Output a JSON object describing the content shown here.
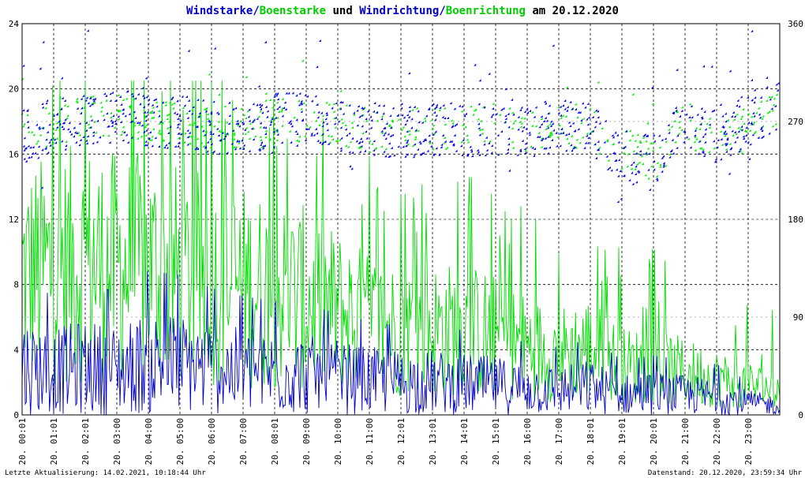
{
  "chart_data": {
    "type": "line",
    "title": {
      "parts": [
        {
          "text": "Windstarke",
          "color": "#0000cc"
        },
        {
          "text": "/",
          "color": "#0000cc"
        },
        {
          "text": "Boenstarke",
          "color": "#00cc00"
        },
        {
          "text": " und ",
          "color": "#000000"
        },
        {
          "text": "Windrichtung",
          "color": "#0000cc"
        },
        {
          "text": "/",
          "color": "#0000cc"
        },
        {
          "text": "Boenrichtung",
          "color": "#00cc00"
        },
        {
          "text": " am 20.12.2020",
          "color": "#000000"
        }
      ]
    },
    "y_left": {
      "ticks": [
        "0",
        "4",
        "8",
        "12",
        "16",
        "20",
        "24"
      ],
      "range": [
        0,
        24
      ]
    },
    "y_right": {
      "ticks": [
        "0",
        "90",
        "180",
        "270",
        "360"
      ],
      "range": [
        0,
        360
      ]
    },
    "x": {
      "range_hours": [
        0,
        24
      ],
      "ticks": [
        "20. 00:01",
        "20. 01:01",
        "20. 02:01",
        "20. 03:00",
        "20. 04:00",
        "20. 05:00",
        "20. 06:00",
        "20. 07:00",
        "20. 08:01",
        "20. 09:00",
        "20. 10:00",
        "20. 11:00",
        "20. 12:01",
        "20. 13:01",
        "20. 14:01",
        "20. 15:01",
        "20. 16:00",
        "20. 17:00",
        "20. 18:01",
        "20. 19:01",
        "20. 20:01",
        "20. 21:00",
        "20. 22:00",
        "20. 23:00"
      ]
    },
    "grid": true,
    "colors": {
      "windstaerke": "#0000cc",
      "boenstaerke": "#00dd00",
      "windrichtung": "#0000ee",
      "boenrichtung": "#00ee00",
      "grid": "#000000"
    },
    "series": [
      {
        "name": "Windstarke",
        "kind": "line",
        "axis": "left",
        "x": [
          0,
          1,
          2,
          3,
          4,
          5,
          6,
          7,
          8,
          9,
          10,
          11,
          12,
          13,
          14,
          15,
          16,
          17,
          18,
          19,
          20,
          21,
          22,
          23,
          24
        ],
        "y": [
          3.2,
          2.8,
          3.1,
          2.9,
          3.4,
          3.3,
          3.0,
          2.8,
          2.7,
          2.6,
          2.4,
          2.2,
          2.1,
          2.1,
          2.0,
          1.9,
          1.7,
          1.6,
          1.8,
          1.3,
          1.4,
          1.3,
          1.2,
          0.8,
          0.6
        ]
      },
      {
        "name": "Boenstarke",
        "kind": "line",
        "axis": "left",
        "x": [
          0,
          1,
          2,
          3,
          4,
          5,
          6,
          7,
          8,
          9,
          10,
          11,
          12,
          13,
          14,
          15,
          16,
          17,
          18,
          19,
          20,
          21,
          22,
          23,
          24
        ],
        "y": [
          11.5,
          12.0,
          12.5,
          12.0,
          12.0,
          11.5,
          11.0,
          10.5,
          10.0,
          9.5,
          8.5,
          7.5,
          7.0,
          7.0,
          7.0,
          6.5,
          5.5,
          5.0,
          5.5,
          4.0,
          4.0,
          3.5,
          3.0,
          2.5,
          2.0
        ]
      },
      {
        "name": "Windrichtung",
        "kind": "scatter",
        "axis": "right",
        "x": [
          0,
          1,
          2,
          3,
          4,
          5,
          6,
          7,
          8,
          9,
          10,
          11,
          12,
          13,
          14,
          15,
          16,
          17,
          18,
          19,
          20,
          21,
          22,
          23,
          24
        ],
        "y": [
          255,
          265,
          270,
          275,
          268,
          270,
          265,
          262,
          270,
          272,
          268,
          258,
          262,
          260,
          262,
          262,
          260,
          265,
          262,
          240,
          230,
          270,
          255,
          270,
          285
        ]
      },
      {
        "name": "Boenrichtung",
        "kind": "scatter",
        "axis": "right",
        "x": [
          0,
          1,
          2,
          3,
          4,
          5,
          6,
          7,
          8,
          9,
          10,
          11,
          12,
          13,
          14,
          15,
          16,
          17,
          18,
          19,
          20,
          21,
          22,
          23,
          24
        ],
        "y": [
          258,
          268,
          272,
          276,
          270,
          268,
          264,
          264,
          272,
          270,
          266,
          260,
          264,
          262,
          264,
          264,
          262,
          266,
          264,
          245,
          230,
          268,
          252,
          262,
          280
        ]
      }
    ]
  },
  "footer": {
    "left": "Letzte Aktualisierung: 14.02.2021, 10:18:44 Uhr",
    "right": "Datenstand: 20.12.2020, 23:59:34 Uhr"
  }
}
